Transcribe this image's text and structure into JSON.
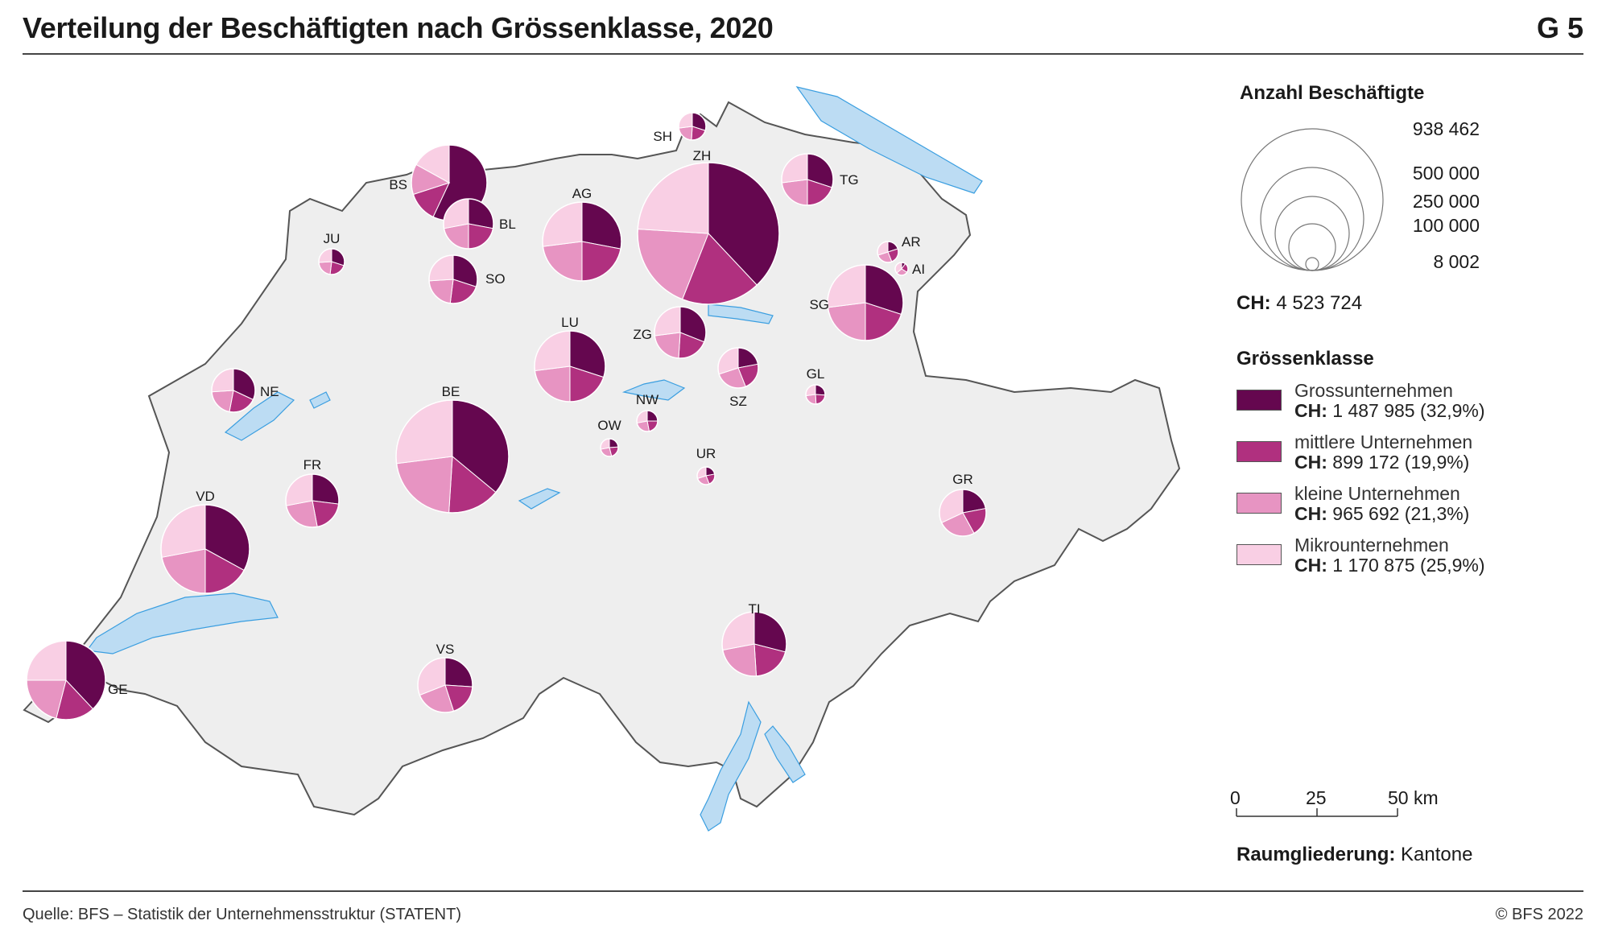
{
  "header": {
    "title": "Verteilung der Beschäftigten nach Grössenklasse, 2020",
    "code": "G 5"
  },
  "footer": {
    "source": "Quelle: BFS – Statistik der Unternehmensstruktur (STATENT)",
    "copyright": "© BFS 2022"
  },
  "colors": {
    "gross": "#65074f",
    "mittlere": "#b0307f",
    "kleine": "#e794c2",
    "mikro": "#f9cfe4",
    "lake": "#bcdcf3",
    "land": "#eeeeee"
  },
  "legend": {
    "size_title": "Anzahl Beschäftigte",
    "size_values": [
      "938 462",
      "500 000",
      "250 000",
      "100 000",
      "8 002"
    ],
    "ch_label": "CH:",
    "ch_total": "4 523 724",
    "class_title": "Grössenklasse",
    "categories": [
      {
        "name": "Grossunternehmen",
        "ch": "CH:",
        "value": "1 487 985 (32,9%)"
      },
      {
        "name": "mittlere Unternehmen",
        "ch": "CH:",
        "value": "899 172 (19,9%)"
      },
      {
        "name": "kleine Unternehmen",
        "ch": "CH:",
        "value": "965 692 (21,3%)"
      },
      {
        "name": "Mikrounternehmen",
        "ch": "CH:",
        "value": "1 170 875 (25,9%)"
      }
    ],
    "scale": {
      "ticks": [
        "0",
        "25",
        "50 km"
      ]
    },
    "raum_label": "Raumgliederung:",
    "raum_value": "Kantone"
  },
  "cantons": [
    {
      "code": "ZH",
      "shares": [
        0.38,
        0.18,
        0.2,
        0.24
      ]
    },
    {
      "code": "BE",
      "shares": [
        0.36,
        0.15,
        0.22,
        0.27
      ]
    },
    {
      "code": "VD",
      "shares": [
        0.33,
        0.17,
        0.22,
        0.28
      ]
    },
    {
      "code": "AG",
      "shares": [
        0.28,
        0.22,
        0.23,
        0.27
      ]
    },
    {
      "code": "SG",
      "shares": [
        0.3,
        0.2,
        0.23,
        0.27
      ]
    },
    {
      "code": "GE",
      "shares": [
        0.38,
        0.16,
        0.21,
        0.25
      ]
    },
    {
      "code": "LU",
      "shares": [
        0.3,
        0.2,
        0.23,
        0.27
      ]
    },
    {
      "code": "TI",
      "shares": [
        0.29,
        0.2,
        0.23,
        0.28
      ]
    },
    {
      "code": "BS",
      "shares": [
        0.57,
        0.13,
        0.13,
        0.17
      ]
    },
    {
      "code": "VS",
      "shares": [
        0.26,
        0.19,
        0.24,
        0.31
      ]
    },
    {
      "code": "BL",
      "shares": [
        0.28,
        0.22,
        0.22,
        0.28
      ]
    },
    {
      "code": "FR",
      "shares": [
        0.27,
        0.2,
        0.25,
        0.28
      ]
    },
    {
      "code": "SO",
      "shares": [
        0.3,
        0.22,
        0.22,
        0.26
      ]
    },
    {
      "code": "TG",
      "shares": [
        0.3,
        0.2,
        0.23,
        0.27
      ]
    },
    {
      "code": "GR",
      "shares": [
        0.22,
        0.2,
        0.26,
        0.32
      ]
    },
    {
      "code": "ZG",
      "shares": [
        0.31,
        0.2,
        0.22,
        0.27
      ]
    },
    {
      "code": "SZ",
      "shares": [
        0.22,
        0.22,
        0.26,
        0.3
      ]
    },
    {
      "code": "NE",
      "shares": [
        0.32,
        0.21,
        0.21,
        0.26
      ]
    },
    {
      "code": "SH",
      "shares": [
        0.3,
        0.21,
        0.22,
        0.27
      ]
    },
    {
      "code": "JU",
      "shares": [
        0.3,
        0.22,
        0.22,
        0.26
      ]
    },
    {
      "code": "AR",
      "shares": [
        0.2,
        0.24,
        0.26,
        0.3
      ]
    },
    {
      "code": "NW",
      "shares": [
        0.25,
        0.22,
        0.25,
        0.28
      ]
    },
    {
      "code": "GL",
      "shares": [
        0.26,
        0.23,
        0.24,
        0.27
      ]
    },
    {
      "code": "OW",
      "shares": [
        0.24,
        0.22,
        0.26,
        0.28
      ]
    },
    {
      "code": "UR",
      "shares": [
        0.22,
        0.22,
        0.26,
        0.3
      ]
    },
    {
      "code": "AI",
      "shares": [
        0.1,
        0.24,
        0.3,
        0.36
      ]
    }
  ]
}
